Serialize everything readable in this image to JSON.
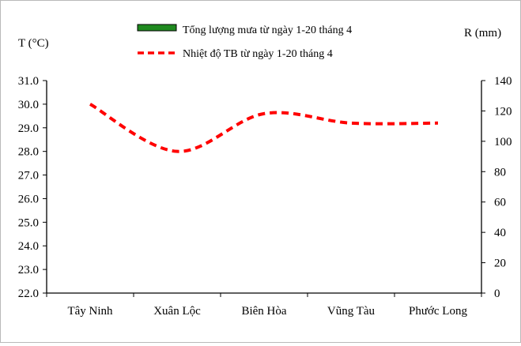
{
  "chart_data": {
    "type": "line",
    "categories": [
      "Tây Ninh",
      "Xuân Lộc",
      "Biên Hòa",
      "Vũng Tàu",
      "Phước Long"
    ],
    "series": [
      {
        "name": "Tổng lượng mưa từ ngày 1-20 tháng 4",
        "axis": "right",
        "render": "bar",
        "color": "#1f8a1f",
        "values": [
          0,
          0,
          0,
          0,
          0
        ]
      },
      {
        "name": "Nhiệt độ TB từ ngày 1-20 tháng 4",
        "axis": "left",
        "render": "dashed-smooth-line",
        "color": "#ff0000",
        "values": [
          30.0,
          28.0,
          29.6,
          29.2,
          29.2
        ]
      }
    ],
    "y_left": {
      "label": "T (°C)",
      "ylim": [
        22.0,
        31.0
      ],
      "ticks": [
        "22.0",
        "23.0",
        "24.0",
        "25.0",
        "26.0",
        "27.0",
        "28.0",
        "29.0",
        "30.0",
        "31.0"
      ]
    },
    "y_right": {
      "label": "R (mm)",
      "ylim": [
        0,
        140
      ],
      "ticks": [
        "0",
        "20",
        "40",
        "60",
        "80",
        "100",
        "120",
        "140"
      ]
    },
    "grid": false,
    "legend_position": "top-center"
  }
}
